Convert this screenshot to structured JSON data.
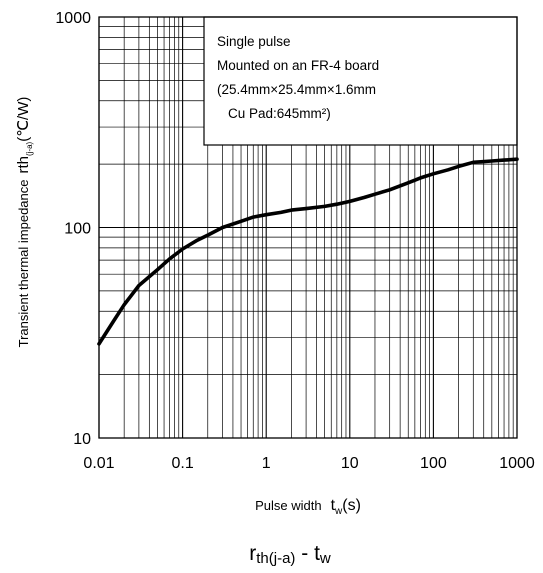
{
  "chart_data": {
    "type": "line",
    "x_scale": "log",
    "y_scale": "log",
    "xlim": [
      0.01,
      1000
    ],
    "ylim": [
      10,
      1000
    ],
    "grid": true,
    "x_ticks": [
      "0.01",
      "0.1",
      "1",
      "10",
      "100",
      "1000"
    ],
    "y_ticks": [
      "10",
      "100",
      "1000"
    ],
    "xlabel": {
      "main": "Pulse width",
      "sym": "t",
      "sub": "w",
      "unit": "(s)"
    },
    "ylabel": {
      "main": "Transient thermal impedance",
      "sym": "rth",
      "sub": "(j-a)",
      "unit": "(℃/W)"
    },
    "annotation": {
      "lines": [
        "Single pulse",
        "Mounted on an FR-4 board",
        "(25.4mm×25.4mm×1.6mm",
        "Cu Pad:645mm²)"
      ]
    },
    "caption": {
      "sym": "r",
      "sub": "th(j-a)",
      "sep": " - ",
      "sym2": "t",
      "sub2": "w"
    },
    "series": [
      {
        "x": [
          0.01,
          0.015,
          0.02,
          0.03,
          0.05,
          0.07,
          0.1,
          0.15,
          0.2,
          0.3,
          0.5,
          0.7,
          1,
          1.5,
          2,
          3,
          5,
          7,
          10,
          15,
          20,
          30,
          50,
          70,
          100,
          150,
          200,
          300,
          500,
          700,
          1000
        ],
        "y": [
          28,
          36,
          43,
          53,
          63,
          71,
          79,
          87,
          92,
          100,
          107,
          112,
          115,
          118,
          121,
          123,
          126,
          129,
          133,
          139,
          144,
          151,
          163,
          172,
          180,
          188,
          195,
          204,
          207,
          209,
          211
        ]
      }
    ]
  }
}
